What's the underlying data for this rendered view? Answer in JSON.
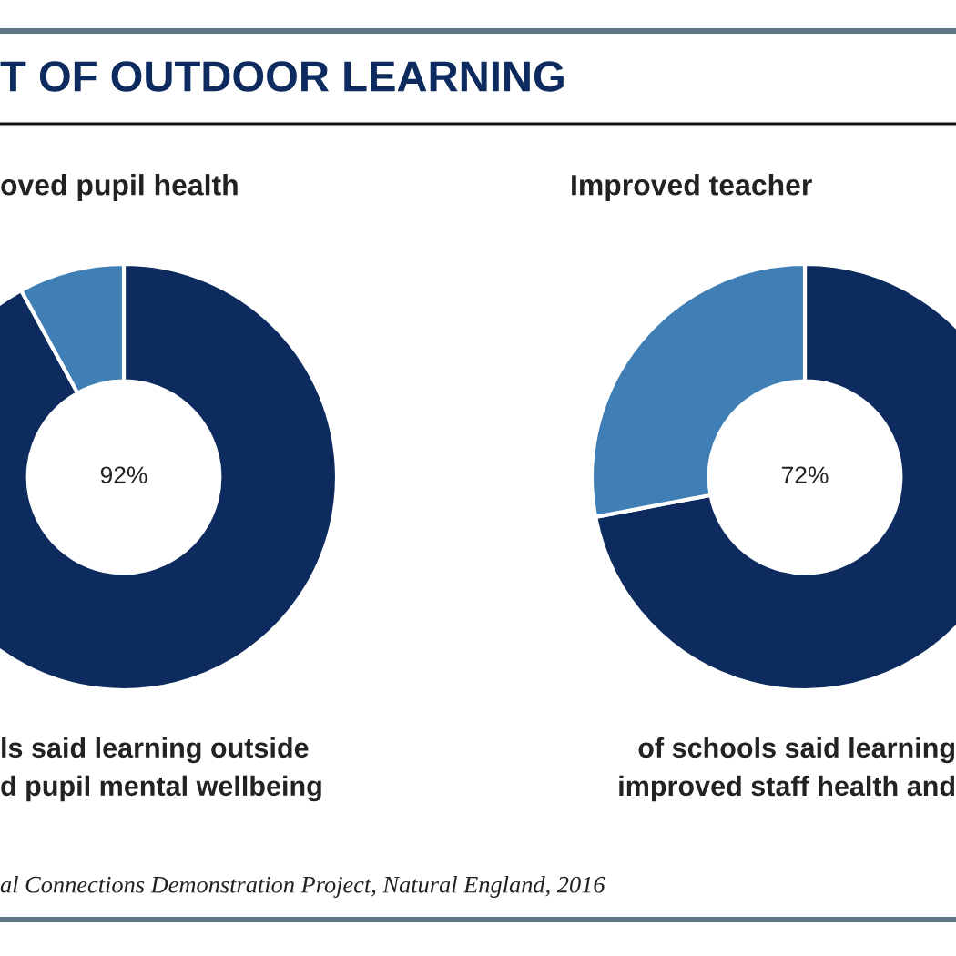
{
  "chart_data": [
    {
      "type": "donut",
      "title": "T OF OUTDOOR LEARNING",
      "subtitle": "oved pupil health",
      "categories": [
        null,
        null
      ],
      "values": [
        92,
        8
      ],
      "colors": [
        "#0d2b5e",
        "#3f7fb5"
      ],
      "value_labels": [
        "92%",
        null
      ],
      "annotations": [
        "ls said learning outside",
        "d pupil mental wellbeing",
        "al Connections Demonstration Project, Natural England, 2016"
      ]
    },
    {
      "type": "donut",
      "subtitle": "Improved teacher",
      "categories": [
        null,
        null
      ],
      "values": [
        72,
        28
      ],
      "colors": [
        "#0d2b5e",
        "#3f7fb5"
      ],
      "value_labels": [
        "72%",
        null
      ],
      "annotations": [
        "of schools said learning",
        "improved staff health and"
      ]
    }
  ]
}
